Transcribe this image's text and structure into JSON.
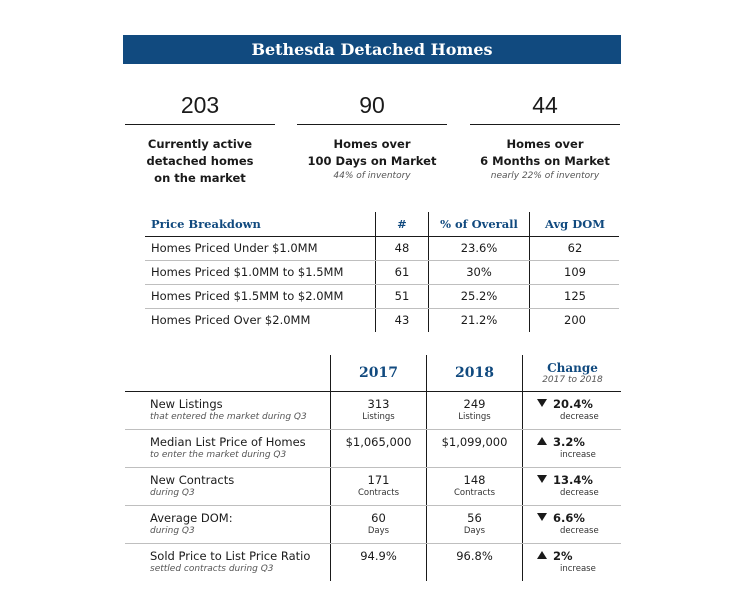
{
  "title": "Bethesda Detached Homes",
  "stats": [
    {
      "value": "203",
      "desc": [
        "Currently active",
        "detached homes",
        "on the market"
      ],
      "sub": ""
    },
    {
      "value": "90",
      "desc": [
        "Homes over",
        "100 Days on Market"
      ],
      "sub": "44% of inventory"
    },
    {
      "value": "44",
      "desc": [
        "Homes over",
        "6 Months on Market"
      ],
      "sub": "nearly 22% of inventory"
    }
  ],
  "price_breakdown": {
    "headers": {
      "label": "Price Breakdown",
      "count": "#",
      "pct": "% of Overall",
      "dom": "Avg DOM"
    },
    "rows": [
      {
        "label": "Homes Priced Under $1.0MM",
        "count": "48",
        "pct": "23.6%",
        "dom": "62"
      },
      {
        "label": "Homes Priced $1.0MM to $1.5MM",
        "count": "61",
        "pct": "30%",
        "dom": "109"
      },
      {
        "label": "Homes Priced $1.5MM to $2.0MM",
        "count": "51",
        "pct": "25.2%",
        "dom": "125"
      },
      {
        "label": "Homes Priced Over $2.0MM",
        "count": "43",
        "pct": "21.2%",
        "dom": "200"
      }
    ]
  },
  "comparison": {
    "headers": {
      "y2017": "2017",
      "y2018": "2018",
      "change": "Change",
      "change_sub": "2017 to 2018"
    },
    "rows": [
      {
        "label": "New Listings",
        "sub": "that entered the market during Q3",
        "v2017": "313",
        "u2017": "Listings",
        "v2018": "249",
        "u2018": "Listings",
        "direction": "down",
        "change": "20.4%",
        "change_word": "decrease"
      },
      {
        "label": "Median List Price of Homes",
        "sub": "to enter the market during Q3",
        "v2017": "$1,065,000",
        "u2017": "",
        "v2018": "$1,099,000",
        "u2018": "",
        "direction": "up",
        "change": "3.2%",
        "change_word": "increase"
      },
      {
        "label": "New Contracts",
        "sub": "during Q3",
        "v2017": "171",
        "u2017": "Contracts",
        "v2018": "148",
        "u2018": "Contracts",
        "direction": "down",
        "change": "13.4%",
        "change_word": "decrease"
      },
      {
        "label": "Average DOM:",
        "sub": "during Q3",
        "v2017": "60",
        "u2017": "Days",
        "v2018": "56",
        "u2018": "Days",
        "direction": "down",
        "change": "6.6%",
        "change_word": "decrease"
      },
      {
        "label": "Sold Price to List Price Ratio",
        "sub": "settled contracts during Q3",
        "v2017": "94.9%",
        "u2017": "",
        "v2018": "96.8%",
        "u2018": "",
        "direction": "up",
        "change": "2%",
        "change_word": "increase"
      }
    ]
  }
}
